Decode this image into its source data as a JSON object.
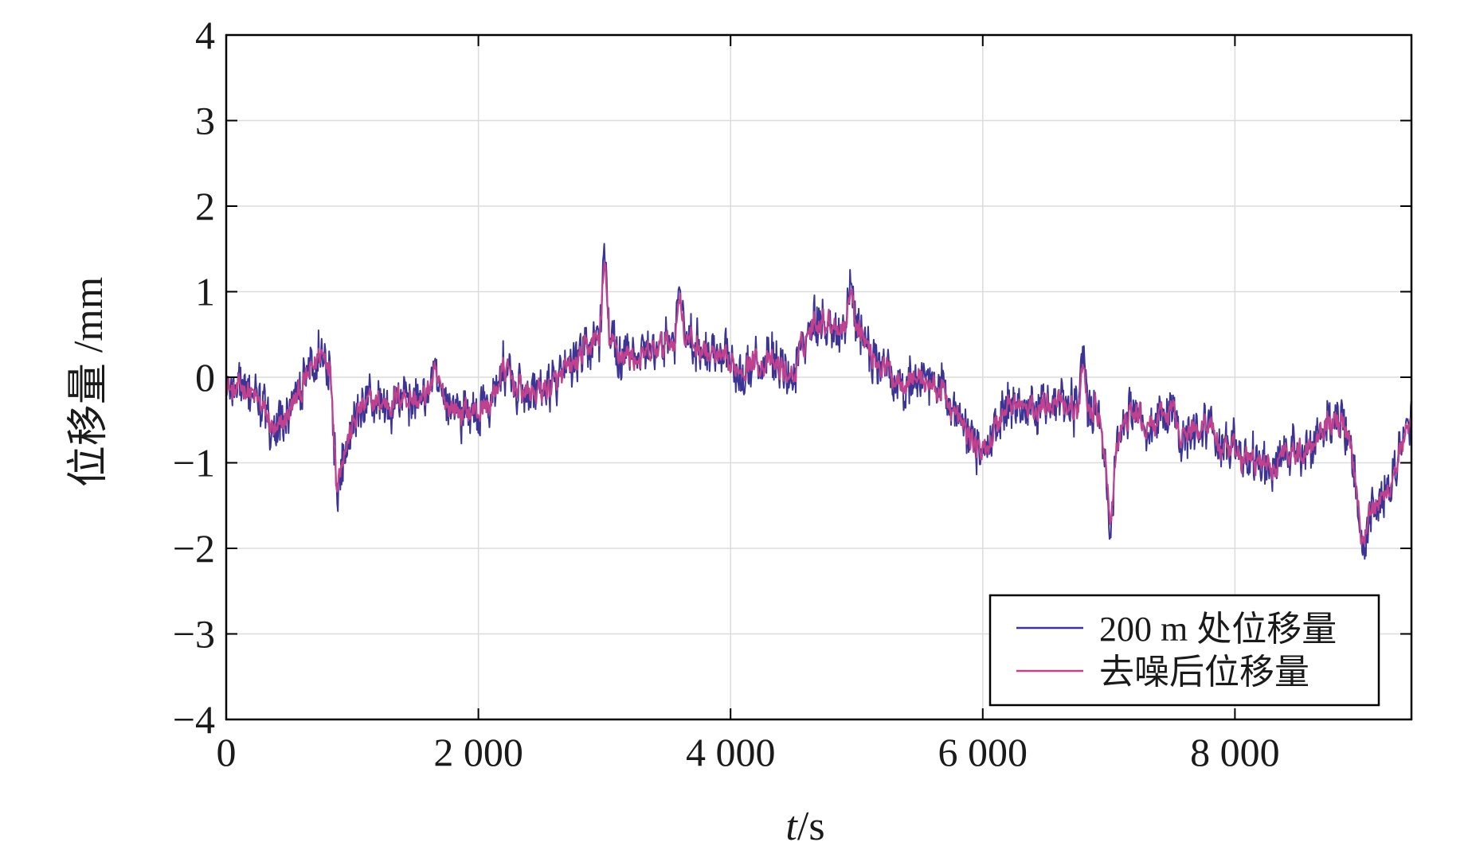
{
  "chart_data": {
    "type": "line",
    "xlabel_italic": "t",
    "xlabel_unit": "/s",
    "ylabel": "位移量 /mm",
    "xlim": [
      0,
      9400
    ],
    "ylim": [
      -4,
      4
    ],
    "x_ticks": [
      0,
      2000,
      4000,
      6000,
      8000
    ],
    "x_tick_labels": [
      "0",
      "2 000",
      "4 000",
      "6 000",
      "8 000"
    ],
    "y_ticks": [
      4,
      3,
      2,
      1,
      0,
      -1,
      -2,
      -3,
      -4
    ],
    "y_tick_labels": [
      "4",
      "3",
      "2",
      "1",
      "0",
      "−1",
      "−2",
      "−3",
      "−4"
    ],
    "grid": true,
    "legend_position": "bottom-right",
    "series": [
      {
        "name": "200 m 处位移量",
        "color": "#3b3494",
        "noise_amplitude": 0.22,
        "x": [
          0,
          50,
          150,
          300,
          400,
          500,
          650,
          750,
          820,
          880,
          950,
          1050,
          1150,
          1300,
          1400,
          1550,
          1650,
          1750,
          1850,
          1950,
          2000,
          2100,
          2200,
          2300,
          2400,
          2600,
          2800,
          2900,
          3000,
          3100,
          3300,
          3500,
          3600,
          3700,
          3800,
          3900,
          4000,
          4200,
          4400,
          4500,
          4600,
          4700,
          4900,
          5000,
          5100,
          5300,
          5500,
          5700,
          5800,
          5900,
          6000,
          6200,
          6400,
          6600,
          6800,
          6900,
          7000,
          7100,
          7200,
          7300,
          7500,
          7600,
          7700,
          7800,
          7900,
          8000,
          8200,
          8300,
          8400,
          8500,
          8600,
          8700,
          8800,
          8900,
          9000,
          9100,
          9200,
          9300,
          9400
        ],
        "y": [
          0.0,
          -0.2,
          -0.1,
          -0.4,
          -0.7,
          -0.4,
          0.0,
          0.3,
          0.2,
          -1.0,
          -0.8,
          -0.4,
          -0.3,
          -0.3,
          -0.2,
          -0.3,
          0.0,
          -0.3,
          -0.4,
          -0.4,
          -0.4,
          -0.3,
          0.1,
          -0.1,
          -0.2,
          -0.1,
          0.2,
          0.4,
          0.5,
          0.3,
          0.2,
          0.4,
          0.5,
          0.4,
          0.3,
          0.2,
          0.1,
          0.2,
          0.1,
          0.0,
          0.5,
          0.7,
          0.6,
          0.7,
          0.3,
          0.0,
          0.0,
          -0.2,
          -0.5,
          -0.7,
          -0.9,
          -0.3,
          -0.4,
          -0.2,
          -0.5,
          -0.3,
          -1.3,
          -0.6,
          -0.4,
          -0.6,
          -0.4,
          -0.7,
          -0.6,
          -0.5,
          -0.9,
          -0.9,
          -1.0,
          -1.1,
          -0.8,
          -0.9,
          -0.8,
          -0.5,
          -0.5,
          -0.6,
          -1.6,
          -1.5,
          -1.4,
          -0.9,
          -0.6
        ]
      },
      {
        "name": "去噪后位移量",
        "color": "#c0428f",
        "noise_amplitude": 0.09,
        "x": [
          0,
          50,
          150,
          300,
          400,
          500,
          650,
          750,
          820,
          880,
          950,
          1050,
          1150,
          1300,
          1400,
          1550,
          1650,
          1750,
          1850,
          1950,
          2000,
          2100,
          2200,
          2300,
          2400,
          2600,
          2800,
          2900,
          3000,
          3100,
          3300,
          3500,
          3600,
          3700,
          3800,
          3900,
          4000,
          4200,
          4400,
          4500,
          4600,
          4700,
          4900,
          5000,
          5100,
          5300,
          5500,
          5700,
          5800,
          5900,
          6000,
          6200,
          6400,
          6600,
          6800,
          6900,
          7000,
          7100,
          7200,
          7300,
          7500,
          7600,
          7700,
          7800,
          7900,
          8000,
          8200,
          8300,
          8400,
          8500,
          8600,
          8700,
          8800,
          8900,
          9000,
          9100,
          9200,
          9300,
          9400
        ],
        "y": [
          0.0,
          -0.2,
          -0.1,
          -0.4,
          -0.7,
          -0.4,
          0.0,
          0.3,
          0.2,
          -1.0,
          -0.8,
          -0.4,
          -0.3,
          -0.3,
          -0.2,
          -0.3,
          0.0,
          -0.3,
          -0.4,
          -0.4,
          -0.4,
          -0.3,
          0.1,
          -0.1,
          -0.2,
          -0.1,
          0.2,
          0.4,
          0.5,
          0.3,
          0.2,
          0.4,
          0.5,
          0.4,
          0.3,
          0.2,
          0.1,
          0.2,
          0.1,
          0.0,
          0.5,
          0.7,
          0.6,
          0.7,
          0.3,
          0.0,
          0.0,
          -0.2,
          -0.5,
          -0.7,
          -0.9,
          -0.3,
          -0.4,
          -0.2,
          -0.5,
          -0.3,
          -1.3,
          -0.6,
          -0.4,
          -0.6,
          -0.4,
          -0.7,
          -0.6,
          -0.5,
          -0.9,
          -0.9,
          -1.0,
          -1.1,
          -0.8,
          -0.9,
          -0.8,
          -0.5,
          -0.5,
          -0.6,
          -1.6,
          -1.5,
          -1.4,
          -0.9,
          -0.6
        ]
      }
    ],
    "peaks": [
      {
        "x": 3000,
        "y": 1.55
      },
      {
        "x": 3600,
        "y": 1.15
      },
      {
        "x": 4950,
        "y": 1.15
      },
      {
        "x": 6800,
        "y": 0.4
      },
      {
        "x": 880,
        "y": -1.35
      },
      {
        "x": 7020,
        "y": -1.75
      },
      {
        "x": 9020,
        "y": -2.05
      }
    ]
  }
}
